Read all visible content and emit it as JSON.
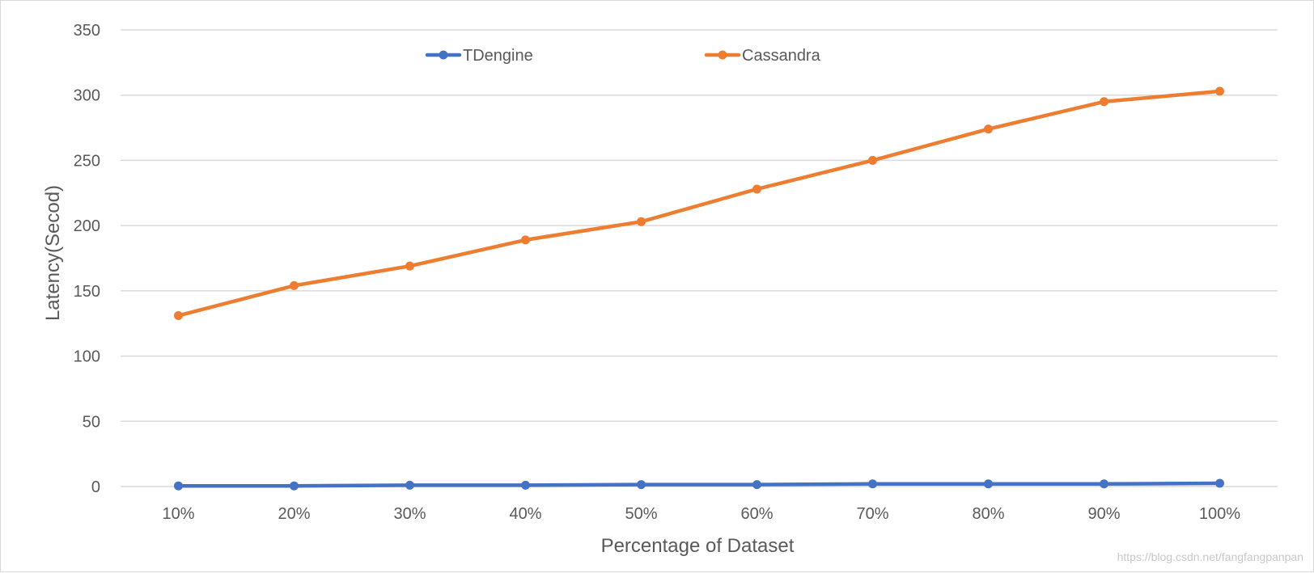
{
  "chart_data": {
    "type": "line",
    "categories": [
      "10%",
      "20%",
      "30%",
      "40%",
      "50%",
      "60%",
      "70%",
      "80%",
      "90%",
      "100%"
    ],
    "series": [
      {
        "name": "TDengine",
        "color": "#4472C4",
        "values": [
          0.5,
          0.5,
          1,
          1,
          1.5,
          1.5,
          2,
          2,
          2,
          2.5
        ]
      },
      {
        "name": "Cassandra",
        "color": "#ED7D31",
        "values": [
          131,
          154,
          169,
          189,
          203,
          228,
          250,
          274,
          295,
          303
        ]
      }
    ],
    "xlabel": "Percentage of Dataset",
    "ylabel": "Latency(Secod)",
    "ylim": [
      0,
      350
    ],
    "yticks": [
      0,
      50,
      100,
      150,
      200,
      250,
      300,
      350
    ],
    "grid": true,
    "legend_position": "top"
  },
  "watermark": "https://blog.csdn.net/fangfangpanpan"
}
